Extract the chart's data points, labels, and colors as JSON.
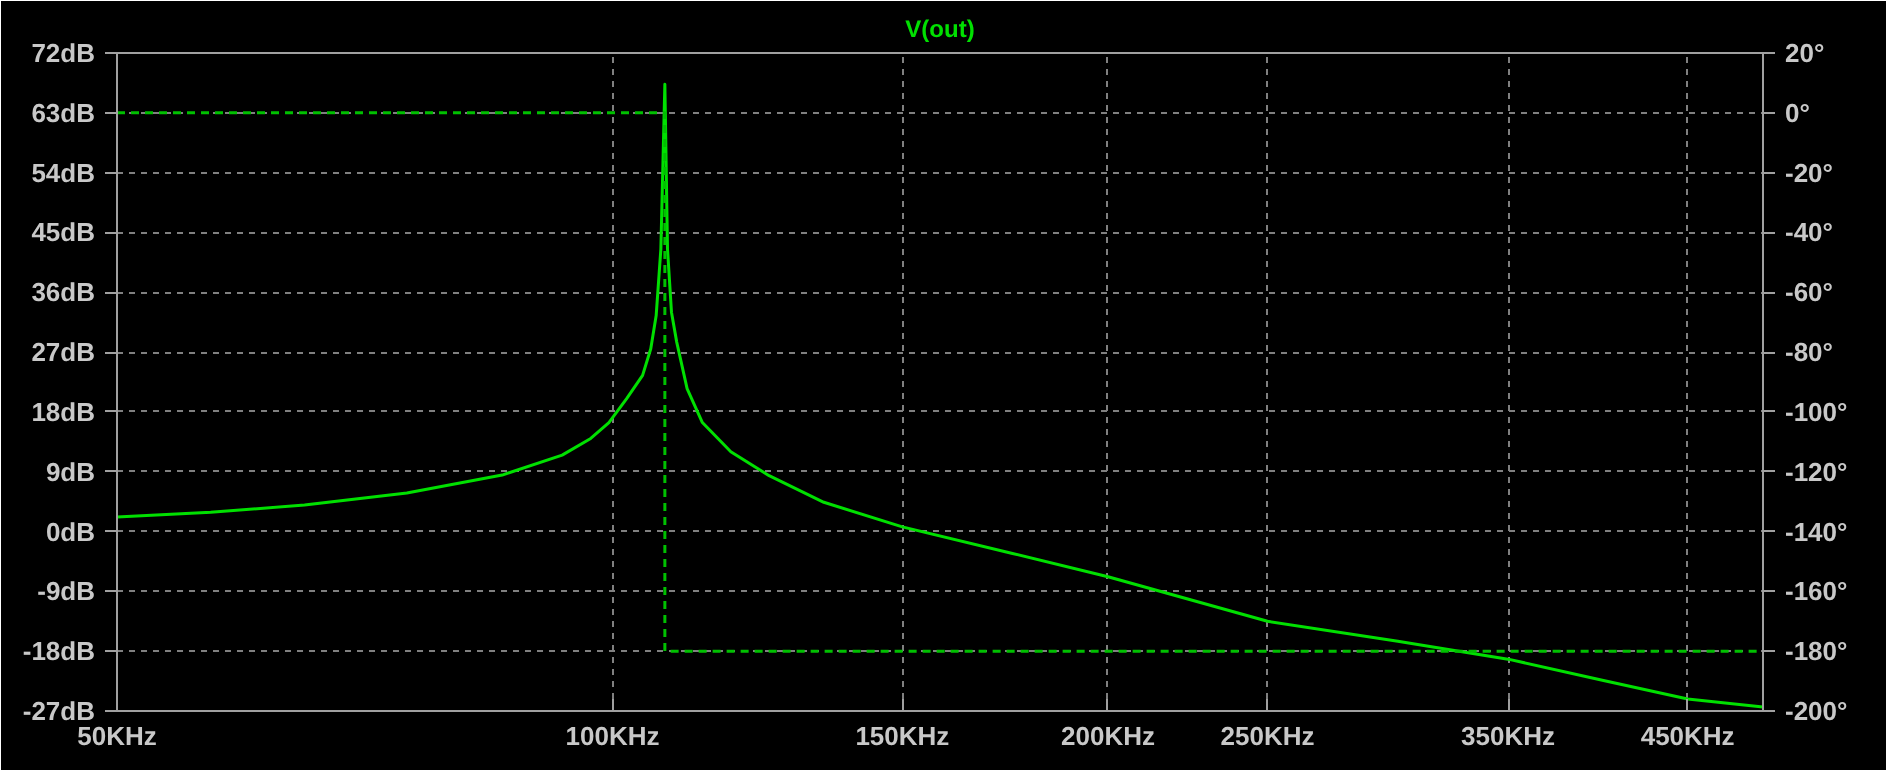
{
  "chart_data": {
    "type": "line",
    "title": "V(out)",
    "log": "x",
    "grid": true,
    "line_style": "solid",
    "xlim": [
      50,
      500
    ],
    "xticks": [
      {
        "value": 50,
        "label": "50KHz"
      },
      {
        "value": 100,
        "label": "100KHz"
      },
      {
        "value": 150,
        "label": "150KHz"
      },
      {
        "value": 200,
        "label": "200KHz"
      },
      {
        "value": 250,
        "label": "250KHz"
      },
      {
        "value": 350,
        "label": "350KHz"
      },
      {
        "value": 450,
        "label": "450KHz"
      }
    ],
    "ylim": [
      -27,
      72
    ],
    "yticks": [
      {
        "value": -27,
        "label": "-27dB"
      },
      {
        "value": -18,
        "label": "-18dB"
      },
      {
        "value": -9,
        "label": "-9dB"
      },
      {
        "value": 0,
        "label": "0dB"
      },
      {
        "value": 9,
        "label": "9dB"
      },
      {
        "value": 18,
        "label": "18dB"
      },
      {
        "value": 27,
        "label": "27dB"
      },
      {
        "value": 36,
        "label": "36dB"
      },
      {
        "value": 45,
        "label": "45dB"
      },
      {
        "value": 54,
        "label": "54dB"
      },
      {
        "value": 63,
        "label": "63dB"
      },
      {
        "value": 72,
        "label": "72dB"
      }
    ],
    "y2lim": [
      -200,
      20
    ],
    "y2ticks": [
      {
        "value": -200,
        "label": "-200°"
      },
      {
        "value": -180,
        "label": "-180°"
      },
      {
        "value": -160,
        "label": "-160°"
      },
      {
        "value": -140,
        "label": "-140°"
      },
      {
        "value": -120,
        "label": "-120°"
      },
      {
        "value": -100,
        "label": "-100°"
      },
      {
        "value": -80,
        "label": "-80°"
      },
      {
        "value": -60,
        "label": "-60°"
      },
      {
        "value": -40,
        "label": "-40°"
      },
      {
        "value": -20,
        "label": "-20°"
      },
      {
        "value": 0,
        "label": "0°"
      },
      {
        "value": 20,
        "label": "20°"
      }
    ],
    "series": [
      {
        "color": "#00e000",
        "x": [
          50,
          57,
          65,
          75,
          85.7,
          93.2,
          97,
          99.5,
          102,
          104.3,
          105.5,
          106.3,
          107,
          107.6,
          108,
          108.6,
          109.4,
          111,
          113.4,
          118,
          124.5,
          134.4,
          150,
          175,
          200,
          250,
          300,
          350,
          400,
          450,
          500
        ],
        "values": [
          2.2,
          2.9,
          4,
          5.8,
          8.5,
          11.5,
          14,
          16.4,
          20,
          23.5,
          27.5,
          32.5,
          42.5,
          67.3,
          42.5,
          33,
          28.5,
          21.5,
          16.4,
          12,
          8.4,
          4.4,
          0.7,
          -3.3,
          -6.8,
          -13.5,
          -16.5,
          -19.2,
          -22.4,
          -25.2,
          -26.4
        ]
      },
      {
        "color": "#00c000",
        "axis": "y2",
        "line_style": "dashed",
        "x": [
          50,
          107.6,
          107.6,
          500
        ],
        "values": [
          0,
          0,
          -180,
          -180
        ]
      }
    ]
  }
}
